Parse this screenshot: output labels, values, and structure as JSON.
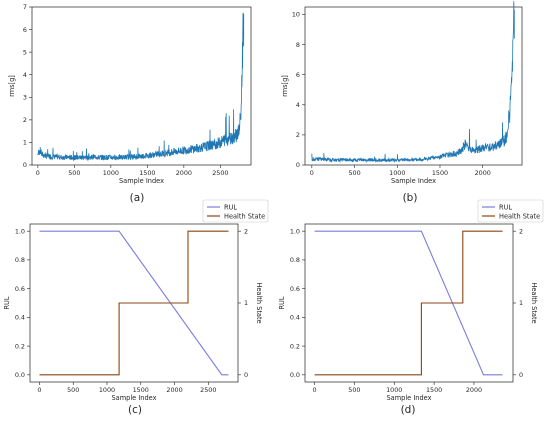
{
  "captions": [
    "(a)",
    "(b)",
    "(c)",
    "(d)"
  ],
  "chart_data": [
    {
      "type": "line",
      "panel": "a",
      "xlabel": "Sample Index",
      "ylabel": "rms[g]",
      "xlim": [
        -80,
        2920
      ],
      "ylim": [
        0,
        7
      ],
      "xticks": [
        0,
        500,
        1000,
        1500,
        2000,
        2500
      ],
      "yticks": [
        0,
        1,
        2,
        3,
        4,
        5,
        6,
        7
      ],
      "color": "#1f77b4",
      "series": [
        {
          "x": [
            0,
            30,
            60,
            90,
            150,
            300,
            500,
            700,
            800,
            820,
            900,
            1100,
            1300,
            1500,
            1600,
            1700,
            1800,
            1900,
            2000,
            2100,
            2200,
            2300,
            2400,
            2500,
            2550,
            2600,
            2650,
            2700,
            2720,
            2740,
            2760,
            2780,
            2790,
            2800,
            2810,
            2820
          ],
          "y": [
            0.5,
            0.65,
            0.45,
            0.42,
            0.38,
            0.35,
            0.33,
            0.33,
            0.38,
            0.33,
            0.34,
            0.34,
            0.36,
            0.42,
            0.46,
            0.5,
            0.55,
            0.6,
            0.65,
            0.7,
            0.75,
            0.82,
            0.9,
            1.0,
            1.1,
            1.15,
            1.2,
            1.3,
            1.35,
            1.4,
            1.6,
            2.2,
            3.0,
            4.5,
            6.0,
            6.7
          ]
        }
      ]
    },
    {
      "type": "line",
      "panel": "b",
      "xlabel": "Sample Index",
      "ylabel": "rms[g]",
      "xlim": [
        -80,
        2460
      ],
      "ylim": [
        0,
        10.5
      ],
      "xticks": [
        0,
        500,
        1000,
        1500,
        2000
      ],
      "yticks": [
        0,
        2,
        4,
        6,
        8,
        10
      ],
      "color": "#1f77b4",
      "series": [
        {
          "x": [
            0,
            100,
            200,
            400,
            600,
            800,
            1000,
            1200,
            1400,
            1500,
            1600,
            1700,
            1750,
            1800,
            1850,
            1900,
            2000,
            2100,
            2200,
            2250,
            2280,
            2300,
            2320,
            2340,
            2350,
            2360,
            2370
          ],
          "y": [
            0.4,
            0.38,
            0.36,
            0.34,
            0.33,
            0.33,
            0.34,
            0.36,
            0.45,
            0.55,
            0.65,
            0.8,
            1.0,
            1.4,
            1.1,
            1.0,
            1.1,
            1.2,
            1.4,
            1.6,
            2.0,
            2.8,
            3.8,
            5.5,
            7.0,
            9.0,
            10.3
          ]
        }
      ]
    },
    {
      "type": "line",
      "panel": "c",
      "xlabel": "Sample Index",
      "ylabel": "RUL",
      "ylabel_right": "Health State",
      "xlim": [
        -140,
        2940
      ],
      "ylim": [
        -0.05,
        1.05
      ],
      "ylim_right": [
        -0.1,
        2.1
      ],
      "xticks": [
        0,
        500,
        1000,
        1500,
        2000,
        2500
      ],
      "yticks": [
        0.0,
        0.2,
        0.4,
        0.6,
        0.8,
        1.0
      ],
      "yticks_right": [
        0,
        1,
        2
      ],
      "legend": "top-right",
      "series": [
        {
          "name": "RUL",
          "axis": "left",
          "color": "#7b7bdb",
          "x": [
            0,
            1180,
            2700,
            2800
          ],
          "y": [
            1.0,
            1.0,
            0.0,
            0.0
          ]
        },
        {
          "name": "Health State",
          "axis": "right",
          "color": "#8b4513",
          "x": [
            0,
            1180,
            1180,
            2200,
            2200,
            2800
          ],
          "y": [
            0,
            0,
            1,
            1,
            2,
            2
          ]
        }
      ]
    },
    {
      "type": "line",
      "panel": "d",
      "xlabel": "Sample Index",
      "ylabel": "RUL",
      "ylabel_right": "Health State",
      "xlim": [
        -120,
        2490
      ],
      "ylim": [
        -0.05,
        1.05
      ],
      "ylim_right": [
        -0.1,
        2.1
      ],
      "xticks": [
        0,
        500,
        1000,
        1500,
        2000
      ],
      "yticks": [
        0.0,
        0.2,
        0.4,
        0.6,
        0.8,
        1.0
      ],
      "yticks_right": [
        0,
        1,
        2
      ],
      "legend": "top-right",
      "series": [
        {
          "name": "RUL",
          "axis": "left",
          "color": "#7b7bdb",
          "x": [
            0,
            1340,
            2120,
            2360
          ],
          "y": [
            1.0,
            1.0,
            0.0,
            0.0
          ]
        },
        {
          "name": "Health State",
          "axis": "right",
          "color": "#8b4513",
          "x": [
            0,
            1340,
            1340,
            1860,
            1860,
            2360
          ],
          "y": [
            0,
            0,
            1,
            1,
            2,
            2
          ]
        }
      ]
    }
  ]
}
